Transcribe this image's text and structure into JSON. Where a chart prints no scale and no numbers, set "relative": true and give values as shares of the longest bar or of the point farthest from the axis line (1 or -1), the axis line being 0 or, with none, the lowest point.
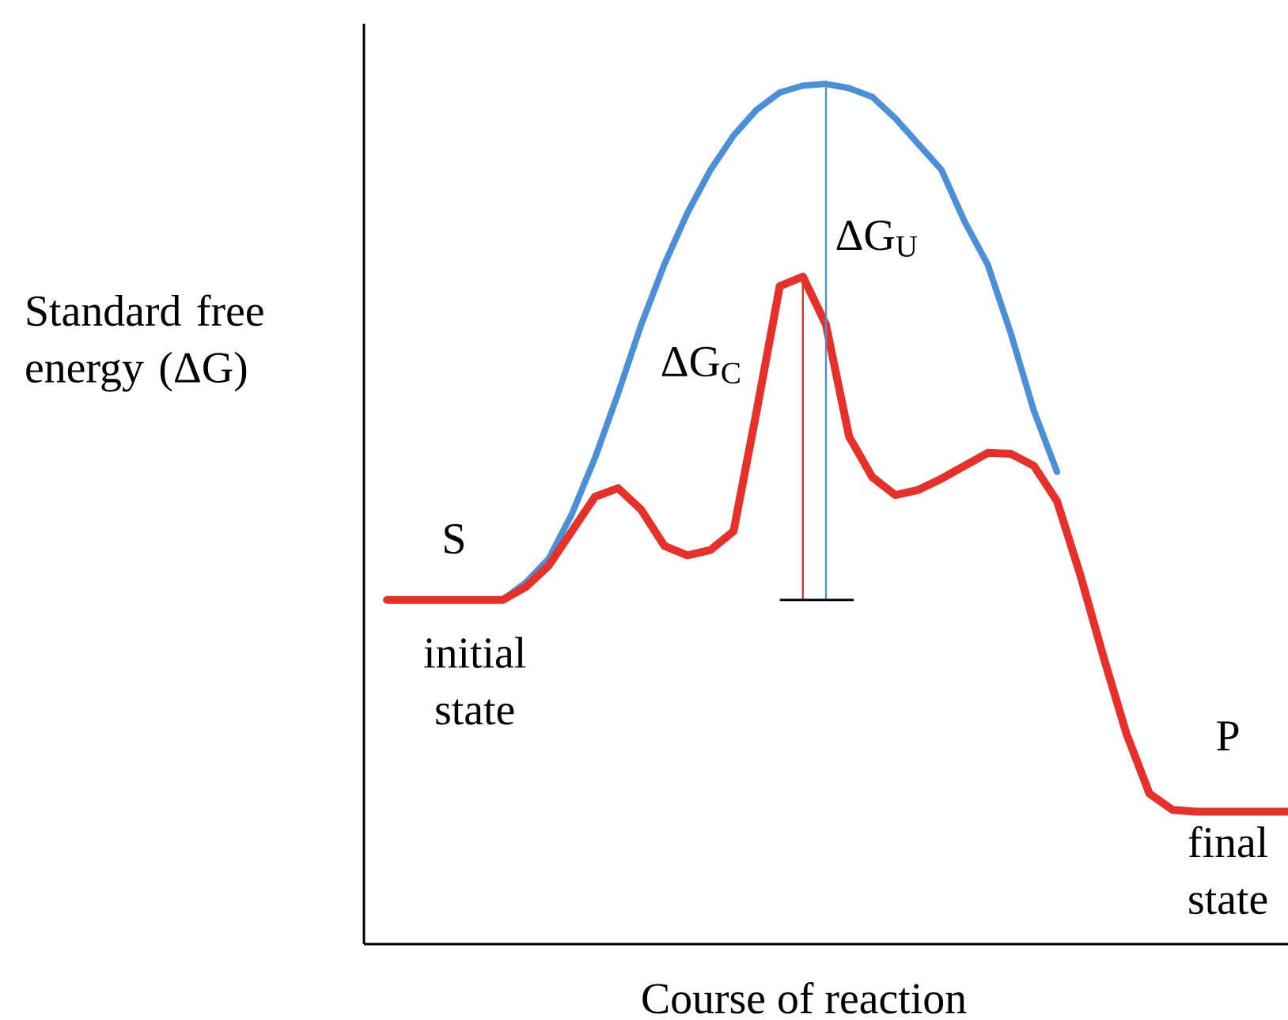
{
  "chart_data": {
    "type": "line",
    "relative": true,
    "xlabel": "Course of reaction",
    "ylabel": "Standard free energy (ΔG)",
    "categories": [
      null,
      null,
      null,
      null,
      null,
      null,
      null,
      null,
      null,
      null,
      null,
      null,
      null,
      null,
      null,
      null,
      null,
      null,
      null,
      null,
      null,
      null,
      null,
      null,
      null,
      null,
      null,
      null,
      null,
      null,
      null,
      null,
      null,
      null,
      null,
      null,
      null,
      null,
      null,
      null,
      null
    ],
    "series": [
      {
        "color": "#4a8fd8",
        "values": [
          null,
          null,
          null,
          null,
          null,
          null,
          0.4,
          0.42,
          0.448,
          0.5,
          0.565,
          0.64,
          0.72,
          0.79,
          0.85,
          0.9,
          0.94,
          0.97,
          0.99,
          0.998,
          1.0,
          0.995,
          0.985,
          0.96,
          0.93,
          0.9,
          0.84,
          0.79,
          0.71,
          0.62,
          0.549,
          null,
          null,
          null,
          null,
          null,
          null,
          null,
          null,
          null,
          null
        ]
      },
      {
        "color": "#e8302a",
        "values": [
          null,
          0.4,
          0.4,
          0.4,
          0.4,
          0.4,
          0.4,
          0.415,
          0.44,
          0.48,
          0.52,
          0.53,
          0.505,
          0.463,
          0.452,
          0.458,
          0.48,
          0.62,
          0.765,
          0.776,
          0.72,
          0.59,
          0.543,
          0.522,
          0.528,
          0.541,
          0.556,
          0.571,
          0.57,
          0.556,
          0.515,
          0.43,
          0.335,
          0.245,
          0.175,
          0.156,
          0.154,
          0.154,
          0.154,
          0.154,
          0.154
        ]
      }
    ],
    "annotations": [
      "S",
      "initial state",
      "P",
      "final state",
      "ΔG$_{U}$",
      "ΔG$_{C}$"
    ]
  }
}
